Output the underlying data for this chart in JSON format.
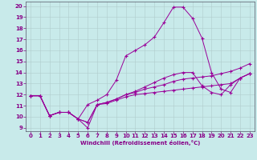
{
  "bg_color": "#c8eaea",
  "line_color": "#990099",
  "grid_color": "#b0cccc",
  "xlabel": "Windchill (Refroidissement éolien,°C)",
  "xlabel_color": "#880088",
  "tick_color": "#880088",
  "spine_color": "#555566",
  "xlim_min": -0.5,
  "xlim_max": 23.5,
  "ylim_min": 8.7,
  "ylim_max": 20.4,
  "xticks": [
    0,
    1,
    2,
    3,
    4,
    5,
    6,
    7,
    8,
    9,
    10,
    11,
    12,
    13,
    14,
    15,
    16,
    17,
    18,
    19,
    20,
    21,
    22,
    23
  ],
  "yticks": [
    9,
    10,
    11,
    12,
    13,
    14,
    15,
    16,
    17,
    18,
    19,
    20
  ],
  "lines": [
    [
      11.9,
      11.9,
      10.1,
      10.4,
      10.4,
      9.8,
      9.0,
      11.1,
      11.2,
      11.5,
      11.8,
      12.0,
      12.1,
      12.2,
      12.3,
      12.4,
      12.5,
      12.6,
      12.7,
      12.8,
      12.9,
      13.0,
      13.5,
      13.9
    ],
    [
      11.9,
      11.9,
      10.1,
      10.4,
      10.4,
      9.8,
      9.5,
      11.1,
      11.3,
      11.6,
      12.0,
      12.2,
      12.5,
      12.7,
      12.9,
      13.2,
      13.4,
      13.5,
      13.6,
      13.7,
      13.9,
      14.1,
      14.4,
      14.8
    ],
    [
      11.9,
      11.9,
      10.1,
      10.4,
      10.4,
      9.8,
      11.1,
      11.5,
      12.0,
      13.3,
      15.5,
      16.0,
      16.5,
      17.2,
      18.5,
      19.9,
      19.9,
      18.9,
      17.1,
      14.0,
      12.5,
      12.2,
      13.5,
      13.9
    ],
    [
      11.9,
      11.9,
      10.1,
      10.4,
      10.4,
      9.8,
      9.5,
      11.1,
      11.3,
      11.6,
      12.0,
      12.3,
      12.7,
      13.1,
      13.5,
      13.8,
      14.0,
      14.0,
      12.8,
      12.2,
      12.0,
      12.9,
      13.5,
      13.9
    ]
  ]
}
